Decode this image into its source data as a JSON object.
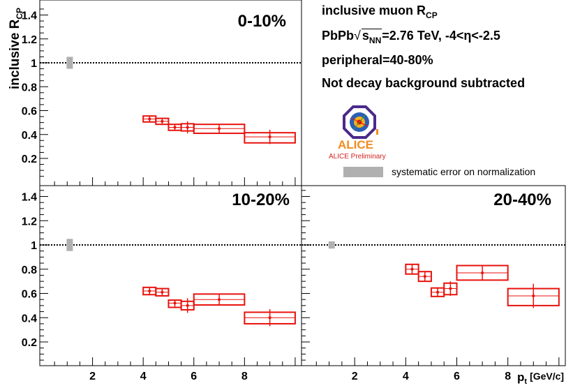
{
  "header": {
    "line1_main": "inclusive muon R",
    "line1_sub": "CP",
    "line2_pre": "PbPb",
    "line2_sqrt": "s",
    "line2_sqrt_sub": "NN",
    "line2_post": "=2.76 TeV, -4<η<-2.5",
    "line3": "peripheral=40-80%",
    "line4": "Not decay background subtracted"
  },
  "logo": {
    "name": "ALICE",
    "caption": "ALICE Preliminary",
    "colors": {
      "text": "#f28c1e",
      "caption": "#d42020",
      "ring": "#4a2a8a"
    }
  },
  "legend": {
    "label": "systematic error on normalization",
    "swatch_color": "#b0b0b0"
  },
  "axes": {
    "ylabel_main": "inclusive R",
    "ylabel_sub": "CP",
    "xlabel_main": "p",
    "xlabel_sub": "t",
    "xlabel_unit": "[GeV/c]",
    "yticks": [
      "0.2",
      "0.4",
      "0.6",
      "0.8",
      "1",
      "1.2",
      "1.4"
    ],
    "xticks": [
      "2",
      "4",
      "6",
      "8"
    ]
  },
  "colors": {
    "data": "#e8120c",
    "norm_box": "#b0b0b0",
    "reference_line": "#000000"
  },
  "chart_data": [
    {
      "type": "scatter",
      "title": "0-10%",
      "xlim": [
        0,
        10
      ],
      "ylim": [
        0,
        1.5
      ],
      "reference_line": 1,
      "norm_uncertainty": {
        "x": 1.1,
        "low": 0.95,
        "high": 1.05
      },
      "points": [
        {
          "x": 4.25,
          "y": 0.53,
          "stat": 0.03,
          "xlo": 4.0,
          "xhi": 4.5,
          "syslo": 0.505,
          "syshi": 0.555
        },
        {
          "x": 4.75,
          "y": 0.51,
          "stat": 0.03,
          "xlo": 4.5,
          "xhi": 5.0,
          "syslo": 0.485,
          "syshi": 0.535
        },
        {
          "x": 5.25,
          "y": 0.46,
          "stat": 0.03,
          "xlo": 5.0,
          "xhi": 5.5,
          "syslo": 0.435,
          "syshi": 0.485
        },
        {
          "x": 5.75,
          "y": 0.46,
          "stat": 0.05,
          "xlo": 5.5,
          "xhi": 6.0,
          "syslo": 0.43,
          "syshi": 0.49
        },
        {
          "x": 7.0,
          "y": 0.45,
          "stat": 0.04,
          "xlo": 6.0,
          "xhi": 8.0,
          "syslo": 0.41,
          "syshi": 0.485
        },
        {
          "x": 9.0,
          "y": 0.38,
          "stat": 0.06,
          "xlo": 8.0,
          "xhi": 10.0,
          "syslo": 0.33,
          "syshi": 0.415
        }
      ]
    },
    {
      "type": "scatter",
      "title": "10-20%",
      "xlim": [
        0,
        10
      ],
      "ylim": [
        0,
        1.5
      ],
      "reference_line": 1,
      "norm_uncertainty": {
        "x": 1.1,
        "low": 0.95,
        "high": 1.05
      },
      "points": [
        {
          "x": 4.25,
          "y": 0.62,
          "stat": 0.03,
          "xlo": 4.0,
          "xhi": 4.5,
          "syslo": 0.59,
          "syshi": 0.65
        },
        {
          "x": 4.75,
          "y": 0.61,
          "stat": 0.03,
          "xlo": 4.5,
          "xhi": 5.0,
          "syslo": 0.58,
          "syshi": 0.64
        },
        {
          "x": 5.25,
          "y": 0.52,
          "stat": 0.03,
          "xlo": 5.0,
          "xhi": 5.5,
          "syslo": 0.485,
          "syshi": 0.545
        },
        {
          "x": 5.75,
          "y": 0.5,
          "stat": 0.06,
          "xlo": 5.5,
          "xhi": 6.0,
          "syslo": 0.465,
          "syshi": 0.535
        },
        {
          "x": 7.0,
          "y": 0.55,
          "stat": 0.05,
          "xlo": 6.0,
          "xhi": 8.0,
          "syslo": 0.505,
          "syshi": 0.595
        },
        {
          "x": 9.0,
          "y": 0.4,
          "stat": 0.07,
          "xlo": 8.0,
          "xhi": 10.0,
          "syslo": 0.35,
          "syshi": 0.445
        }
      ]
    },
    {
      "type": "scatter",
      "title": "20-40%",
      "xlim": [
        0,
        10
      ],
      "ylim": [
        0,
        1.5
      ],
      "reference_line": 1,
      "norm_uncertainty": {
        "x": 1.1,
        "low": 0.97,
        "high": 1.03
      },
      "points": [
        {
          "x": 4.25,
          "y": 0.8,
          "stat": 0.04,
          "xlo": 4.0,
          "xhi": 4.5,
          "syslo": 0.76,
          "syshi": 0.84
        },
        {
          "x": 4.75,
          "y": 0.74,
          "stat": 0.04,
          "xlo": 4.5,
          "xhi": 5.0,
          "syslo": 0.7,
          "syshi": 0.78
        },
        {
          "x": 5.25,
          "y": 0.61,
          "stat": 0.04,
          "xlo": 5.0,
          "xhi": 5.5,
          "syslo": 0.575,
          "syshi": 0.645
        },
        {
          "x": 5.75,
          "y": 0.64,
          "stat": 0.06,
          "xlo": 5.5,
          "xhi": 6.0,
          "syslo": 0.59,
          "syshi": 0.685
        },
        {
          "x": 7.0,
          "y": 0.77,
          "stat": 0.06,
          "xlo": 6.0,
          "xhi": 8.0,
          "syslo": 0.71,
          "syshi": 0.83
        },
        {
          "x": 9.0,
          "y": 0.58,
          "stat": 0.1,
          "xlo": 8.0,
          "xhi": 10.0,
          "syslo": 0.5,
          "syshi": 0.64
        }
      ]
    }
  ]
}
